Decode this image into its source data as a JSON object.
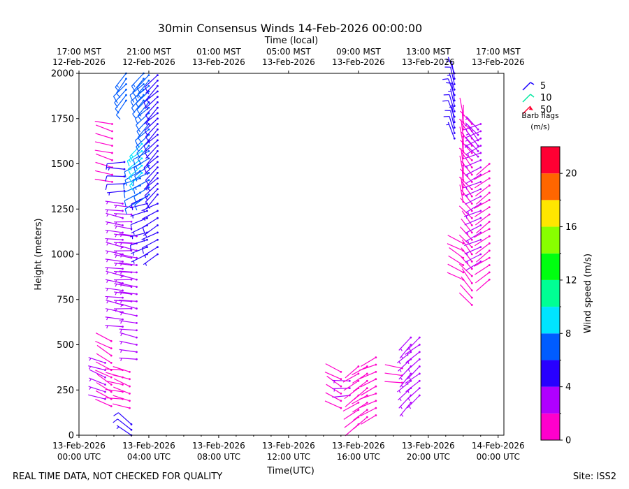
{
  "chart_data": {
    "type": "wind-barb",
    "title": "30min Consensus Winds 14-Feb-2026 00:00:00",
    "top_axis_label": "Time (local)",
    "xlabel": "Time(UTC)",
    "ylabel": "Height (meters)",
    "xlim_hours_utc": [
      0,
      24.33
    ],
    "ylim": [
      0,
      2000
    ],
    "y_ticks": [
      0,
      250,
      500,
      750,
      1000,
      1250,
      1500,
      1750,
      2000
    ],
    "y_tick_labels": [
      "0",
      "250",
      "500",
      "750",
      "1000",
      "1250",
      "1500",
      "1750",
      "2000"
    ],
    "x_ticks_utc": [
      {
        "hour": 0,
        "line1": "13-Feb-2026",
        "line2": "00:00 UTC"
      },
      {
        "hour": 4,
        "line1": "13-Feb-2026",
        "line2": "04:00 UTC"
      },
      {
        "hour": 8,
        "line1": "13-Feb-2026",
        "line2": "08:00 UTC"
      },
      {
        "hour": 12,
        "line1": "13-Feb-2026",
        "line2": "12:00 UTC"
      },
      {
        "hour": 16,
        "line1": "13-Feb-2026",
        "line2": "16:00 UTC"
      },
      {
        "hour": 20,
        "line1": "13-Feb-2026",
        "line2": "20:00 UTC"
      },
      {
        "hour": 24,
        "line1": "14-Feb-2026",
        "line2": "00:00 UTC"
      }
    ],
    "x_ticks_local": [
      {
        "hour": 0,
        "line1": "17:00 MST",
        "line2": "12-Feb-2026"
      },
      {
        "hour": 4,
        "line1": "21:00 MST",
        "line2": "12-Feb-2026"
      },
      {
        "hour": 8,
        "line1": "01:00 MST",
        "line2": "13-Feb-2026"
      },
      {
        "hour": 12,
        "line1": "05:00 MST",
        "line2": "13-Feb-2026"
      },
      {
        "hour": 16,
        "line1": "09:00 MST",
        "line2": "13-Feb-2026"
      },
      {
        "hour": 20,
        "line1": "13:00 MST",
        "line2": "13-Feb-2026"
      },
      {
        "hour": 24,
        "line1": "17:00 MST",
        "line2": "13-Feb-2026"
      }
    ],
    "legend": {
      "title_line1": "Barb flags",
      "title_line2": "(m/s)",
      "entries": [
        {
          "label": "5",
          "color": "#1a00ff"
        },
        {
          "label": "10",
          "color": "#00e8a0"
        },
        {
          "label": "50",
          "color": "#ff0030"
        }
      ]
    },
    "colorbar": {
      "label": "Wind speed (m/s)",
      "min": 0,
      "max": 22,
      "ticks": [
        0,
        4,
        8,
        12,
        16,
        20
      ],
      "tick_labels": [
        "0",
        "4",
        "8",
        "12",
        "16",
        "20"
      ],
      "bins": [
        {
          "from": 0,
          "to": 2,
          "color": "#ff00cc"
        },
        {
          "from": 2,
          "to": 4,
          "color": "#b000ff"
        },
        {
          "from": 4,
          "to": 6,
          "color": "#2800ff"
        },
        {
          "from": 6,
          "to": 8,
          "color": "#005cff"
        },
        {
          "from": 8,
          "to": 10,
          "color": "#00e4ff"
        },
        {
          "from": 10,
          "to": 12,
          "color": "#00ff94"
        },
        {
          "from": 12,
          "to": 14,
          "color": "#00ff10"
        },
        {
          "from": 14,
          "to": 16,
          "color": "#88ff00"
        },
        {
          "from": 16,
          "to": 18,
          "color": "#ffe600"
        },
        {
          "from": 18,
          "to": 20,
          "color": "#ff6600"
        },
        {
          "from": 20,
          "to": 22,
          "color": "#ff0033"
        }
      ]
    },
    "barb_columns": [
      {
        "hour": 1.5,
        "h0": 200,
        "h1": 420,
        "dh": 40,
        "speed": 2.5,
        "dir": 290
      },
      {
        "hour": 1.85,
        "h0": 160,
        "h1": 520,
        "dh": 40,
        "speed": 1.5,
        "dir": 300
      },
      {
        "hour": 1.9,
        "h0": 1400,
        "h1": 1740,
        "dh": 40,
        "speed": 1.5,
        "dir": 285
      },
      {
        "hour": 2.5,
        "h0": 200,
        "h1": 380,
        "dh": 40,
        "speed": 1.5,
        "dir": 280
      },
      {
        "hour": 2.5,
        "h0": 600,
        "h1": 1300,
        "dh": 40,
        "speed": 3.5,
        "dir": 280
      },
      {
        "hour": 2.6,
        "h0": 1350,
        "h1": 1520,
        "dh": 40,
        "speed": 5,
        "dir": 270
      },
      {
        "hour": 2.7,
        "h0": 1850,
        "h1": 2000,
        "dh": 30,
        "speed": 7,
        "dir": 220
      },
      {
        "hour": 2.9,
        "h0": 150,
        "h1": 380,
        "dh": 40,
        "speed": 1.5,
        "dir": 290
      },
      {
        "hour": 3.0,
        "h0": 0,
        "h1": 60,
        "dh": 30,
        "speed": 5,
        "dir": 310
      },
      {
        "hour": 3.0,
        "h0": 700,
        "h1": 1260,
        "dh": 40,
        "speed": 3,
        "dir": 275
      },
      {
        "hour": 3.3,
        "h0": 420,
        "h1": 1100,
        "dh": 40,
        "speed": 3.5,
        "dir": 280
      },
      {
        "hour": 3.5,
        "h0": 1300,
        "h1": 1500,
        "dh": 40,
        "speed": 6,
        "dir": 245
      },
      {
        "hour": 3.6,
        "h0": 1450,
        "h1": 1620,
        "dh": 40,
        "speed": 9,
        "dir": 230
      },
      {
        "hour": 3.7,
        "h0": 1850,
        "h1": 2000,
        "dh": 30,
        "speed": 7,
        "dir": 225
      },
      {
        "hour": 3.9,
        "h0": 1000,
        "h1": 1320,
        "dh": 40,
        "speed": 4.5,
        "dir": 250
      },
      {
        "hour": 4.0,
        "h0": 1330,
        "h1": 1600,
        "dh": 40,
        "speed": 7,
        "dir": 240
      },
      {
        "hour": 4.0,
        "h0": 1600,
        "h1": 2000,
        "dh": 30,
        "speed": 7,
        "dir": 225
      },
      {
        "hour": 4.5,
        "h0": 1000,
        "h1": 1280,
        "dh": 40,
        "speed": 4.5,
        "dir": 240
      },
      {
        "hour": 4.5,
        "h0": 1330,
        "h1": 2000,
        "dh": 30,
        "speed": 5,
        "dir": 225
      },
      {
        "hour": 15.0,
        "h0": 150,
        "h1": 380,
        "dh": 40,
        "speed": 1.5,
        "dir": 300
      },
      {
        "hour": 15.5,
        "h0": 220,
        "h1": 300,
        "dh": 40,
        "speed": 2.5,
        "dir": 270
      },
      {
        "hour": 16.0,
        "h0": 60,
        "h1": 380,
        "dh": 40,
        "speed": 1.5,
        "dir": 235
      },
      {
        "hour": 16.5,
        "h0": 100,
        "h1": 400,
        "dh": 40,
        "speed": 1.5,
        "dir": 235
      },
      {
        "hour": 17.0,
        "h0": 110,
        "h1": 460,
        "dh": 40,
        "speed": 1.5,
        "dir": 245
      },
      {
        "hour": 18.5,
        "h0": 290,
        "h1": 380,
        "dh": 40,
        "speed": 1.5,
        "dir": 280
      },
      {
        "hour": 19.0,
        "h0": 180,
        "h1": 540,
        "dh": 40,
        "speed": 3,
        "dir": 225
      },
      {
        "hour": 19.5,
        "h0": 220,
        "h1": 550,
        "dh": 40,
        "speed": 3,
        "dir": 230
      },
      {
        "hour": 21.5,
        "h0": 1640,
        "h1": 2000,
        "dh": 30,
        "speed": 5,
        "dir": 345
      },
      {
        "hour": 22.0,
        "h0": 1290,
        "h1": 1770,
        "dh": 40,
        "speed": 1.5,
        "dir": 355
      },
      {
        "hour": 22.0,
        "h0": 860,
        "h1": 1070,
        "dh": 40,
        "speed": 1.5,
        "dir": 300
      },
      {
        "hour": 22.5,
        "h0": 720,
        "h1": 1720,
        "dh": 40,
        "speed": 1.5,
        "dir": 320
      },
      {
        "hour": 22.85,
        "h0": 1540,
        "h1": 1700,
        "dh": 30,
        "speed": 3,
        "dir": 320
      },
      {
        "hour": 23.0,
        "h0": 960,
        "h1": 1720,
        "dh": 40,
        "speed": 2.5,
        "dir": 245
      },
      {
        "hour": 23.5,
        "h0": 860,
        "h1": 1500,
        "dh": 40,
        "speed": 1.5,
        "dir": 235
      }
    ]
  },
  "footer_left": "REAL TIME DATA, NOT CHECKED FOR QUALITY",
  "footer_right": "Site: ISS2"
}
